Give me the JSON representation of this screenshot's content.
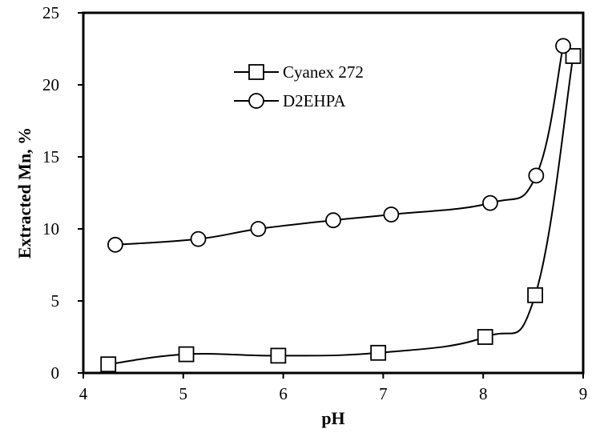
{
  "chart_data": {
    "type": "scatter",
    "title": "",
    "xlabel": "pH",
    "ylabel": "Extracted Mn, %",
    "xlim": [
      4,
      9
    ],
    "ylim": [
      0,
      25
    ],
    "x_ticks": [
      4,
      5,
      6,
      7,
      8,
      9
    ],
    "y_ticks": [
      0,
      5,
      10,
      15,
      20,
      25
    ],
    "grid": false,
    "legend_placement": "top-center",
    "series": [
      {
        "name": "Cyanex 272",
        "marker": "square",
        "color": "#000000",
        "points": [
          {
            "x": 4.25,
            "y": 0.6
          },
          {
            "x": 5.03,
            "y": 1.3
          },
          {
            "x": 5.95,
            "y": 1.2
          },
          {
            "x": 6.95,
            "y": 1.4
          },
          {
            "x": 8.02,
            "y": 2.5
          },
          {
            "x": 8.52,
            "y": 5.4
          },
          {
            "x": 8.9,
            "y": 22.0
          }
        ]
      },
      {
        "name": "D2EHPA",
        "marker": "circle",
        "color": "#000000",
        "points": [
          {
            "x": 4.32,
            "y": 8.9
          },
          {
            "x": 5.15,
            "y": 9.3
          },
          {
            "x": 5.75,
            "y": 10.0
          },
          {
            "x": 6.5,
            "y": 10.6
          },
          {
            "x": 7.08,
            "y": 11.0
          },
          {
            "x": 8.07,
            "y": 11.8
          },
          {
            "x": 8.53,
            "y": 13.7
          },
          {
            "x": 8.8,
            "y": 22.7
          }
        ]
      }
    ]
  }
}
